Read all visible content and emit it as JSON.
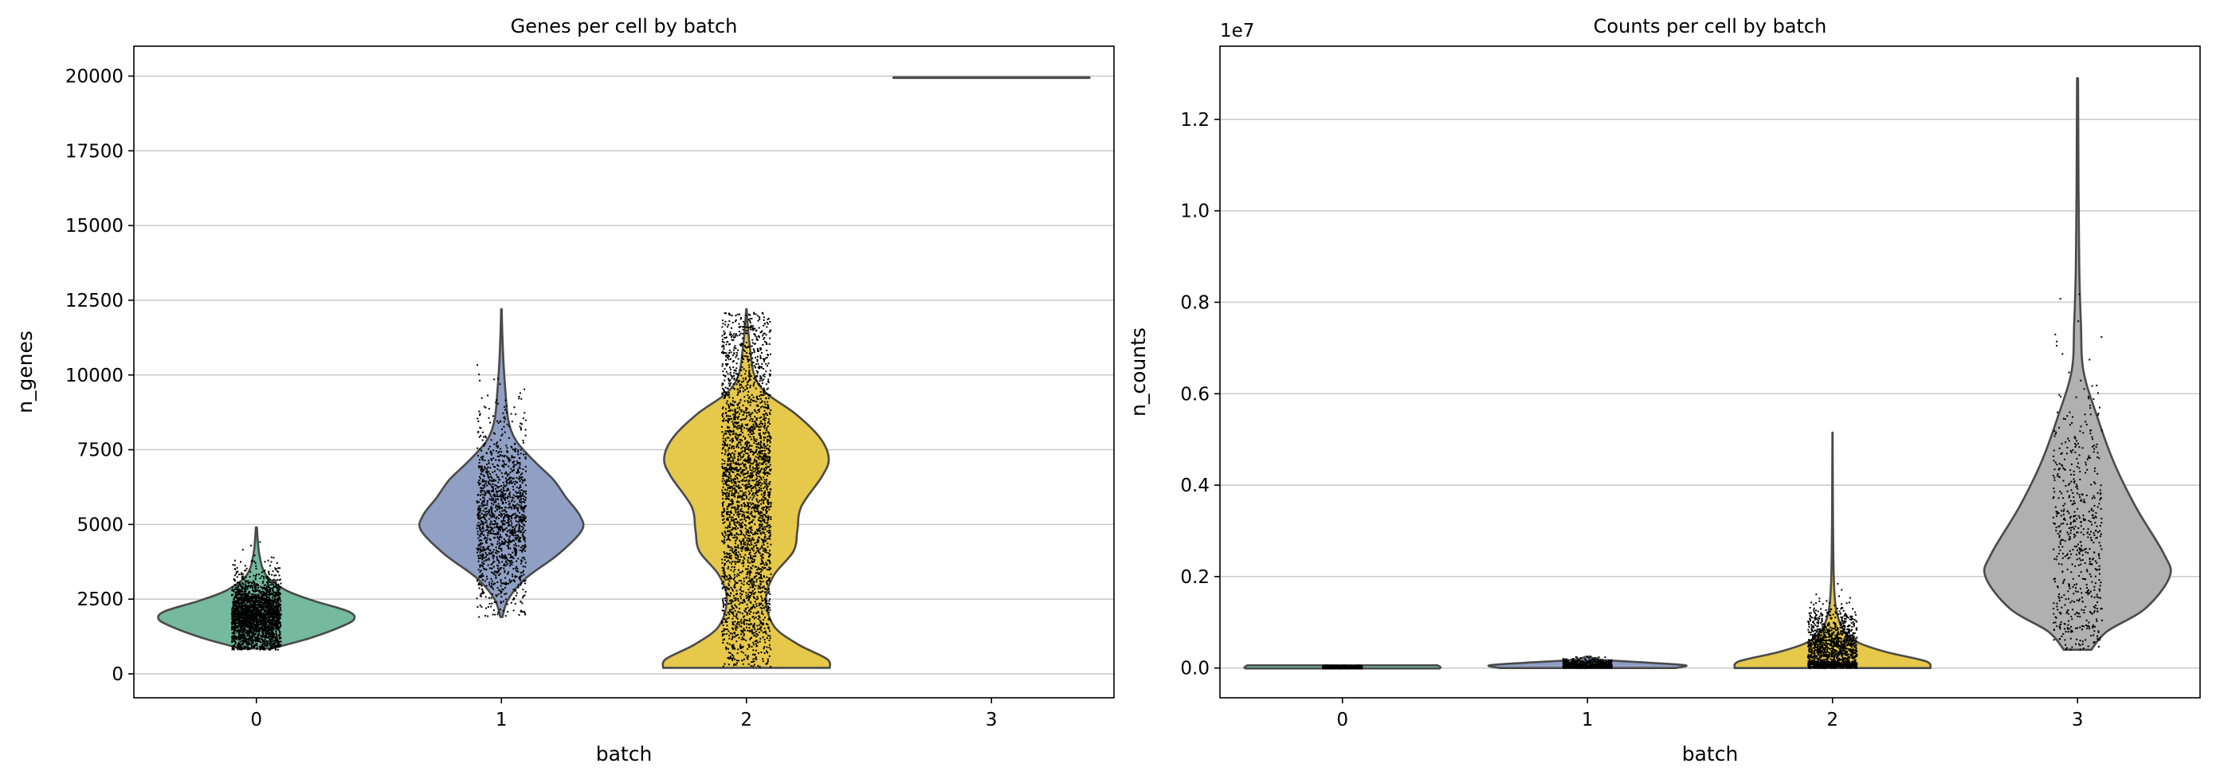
{
  "chart_data": [
    {
      "type": "violin",
      "title": "Genes per cell by batch",
      "xlabel": "batch",
      "ylabel": "n_genes",
      "categories": [
        "0",
        "1",
        "2",
        "3"
      ],
      "ylim": [
        -800,
        21000
      ],
      "yticks": [
        0,
        2500,
        5000,
        7500,
        10000,
        12500,
        15000,
        17500,
        20000
      ],
      "ytick_labels": [
        "0",
        "2500",
        "5000",
        "7500",
        "10000",
        "12500",
        "15000",
        "17500",
        "20000"
      ],
      "grid": "y",
      "violins": [
        {
          "category": "0",
          "color": "#74b9a0",
          "min": 850,
          "max": 4900,
          "max_halfwidth": 0.4,
          "profile": [
            [
              850,
              0.16
            ],
            [
              1200,
              0.55
            ],
            [
              1600,
              0.88
            ],
            [
              1850,
              1.0
            ],
            [
              2100,
              0.93
            ],
            [
              2450,
              0.58
            ],
            [
              2800,
              0.3
            ],
            [
              3300,
              0.1
            ],
            [
              4000,
              0.03
            ],
            [
              4900,
              0.005
            ]
          ]
        },
        {
          "category": "1",
          "color": "#909fc4",
          "min": 1900,
          "max": 12200,
          "max_halfwidth": 0.4,
          "profile": [
            [
              1900,
              0.01
            ],
            [
              2500,
              0.07
            ],
            [
              3200,
              0.25
            ],
            [
              4000,
              0.58
            ],
            [
              4800,
              0.82
            ],
            [
              5300,
              0.8
            ],
            [
              5900,
              0.66
            ],
            [
              6500,
              0.53
            ],
            [
              7100,
              0.34
            ],
            [
              7800,
              0.15
            ],
            [
              8500,
              0.07
            ],
            [
              9500,
              0.04
            ],
            [
              10500,
              0.02
            ],
            [
              11500,
              0.008
            ],
            [
              12200,
              0.003
            ]
          ]
        },
        {
          "category": "2",
          "color": "#e6c84a",
          "min": 200,
          "max": 12200,
          "max_halfwidth": 0.4,
          "profile": [
            [
              200,
              0.85
            ],
            [
              500,
              0.82
            ],
            [
              1000,
              0.52
            ],
            [
              1600,
              0.28
            ],
            [
              2500,
              0.2
            ],
            [
              3300,
              0.28
            ],
            [
              4100,
              0.48
            ],
            [
              4800,
              0.52
            ],
            [
              5600,
              0.56
            ],
            [
              6600,
              0.77
            ],
            [
              7200,
              0.84
            ],
            [
              7900,
              0.75
            ],
            [
              8700,
              0.5
            ],
            [
              9400,
              0.2
            ],
            [
              10000,
              0.08
            ],
            [
              10800,
              0.04
            ],
            [
              11600,
              0.015
            ],
            [
              12200,
              0.003
            ]
          ]
        },
        {
          "category": "3",
          "color": "#b0b0b0",
          "min": 19940,
          "max": 19960,
          "max_halfwidth": 0.4,
          "profile": [
            [
              19940,
              1.0
            ],
            [
              19960,
              1.0
            ]
          ]
        }
      ],
      "jitter": [
        {
          "category": "0",
          "count": 2600,
          "min": 800,
          "max": 4900,
          "center": 1950,
          "spread": 650,
          "width": 0.1
        },
        {
          "category": "1",
          "count": 1400,
          "min": 1900,
          "max": 12100,
          "center": 5200,
          "spread": 1600,
          "width": 0.1
        },
        {
          "category": "2",
          "count": 2800,
          "min": 200,
          "max": 12100,
          "center": 6000,
          "spread": 3300,
          "width": 0.1
        }
      ]
    },
    {
      "type": "violin",
      "title": "Counts per cell by batch",
      "xlabel": "batch",
      "ylabel": "n_counts",
      "offset_label": "1e7",
      "categories": [
        "0",
        "1",
        "2",
        "3"
      ],
      "ylim": [
        -0.065,
        1.36
      ],
      "yticks": [
        0.0,
        0.2,
        0.4,
        0.6,
        0.8,
        1.0,
        1.2
      ],
      "ytick_labels": [
        "0.0",
        "0.2",
        "0.4",
        "0.6",
        "0.8",
        "1.0",
        "1.2"
      ],
      "grid": "y",
      "violins": [
        {
          "category": "0",
          "color": "#74b9a0",
          "min": -0.001,
          "max": 0.006,
          "max_halfwidth": 0.4,
          "profile": [
            [
              -0.001,
              0.99
            ],
            [
              0.002,
              1.0
            ],
            [
              0.006,
              0.97
            ]
          ]
        },
        {
          "category": "1",
          "color": "#909fc4",
          "min": 0.0,
          "max": 0.025,
          "max_halfwidth": 0.4,
          "profile": [
            [
              0.0,
              0.9
            ],
            [
              0.006,
              1.0
            ],
            [
              0.012,
              0.6
            ],
            [
              0.018,
              0.15
            ],
            [
              0.025,
              0.01
            ]
          ]
        },
        {
          "category": "2",
          "color": "#e6c84a",
          "min": 0.0,
          "max": 0.515,
          "max_halfwidth": 0.4,
          "profile": [
            [
              0.0,
              1.0
            ],
            [
              0.015,
              0.95
            ],
            [
              0.035,
              0.55
            ],
            [
              0.055,
              0.27
            ],
            [
              0.08,
              0.12
            ],
            [
              0.12,
              0.045
            ],
            [
              0.17,
              0.018
            ],
            [
              0.25,
              0.008
            ],
            [
              0.35,
              0.004
            ],
            [
              0.45,
              0.002
            ],
            [
              0.515,
              0.001
            ]
          ]
        },
        {
          "category": "3",
          "color": "#b0b0b0",
          "min": 0.04,
          "max": 1.29,
          "max_halfwidth": 0.4,
          "profile": [
            [
              0.04,
              0.14
            ],
            [
              0.08,
              0.3
            ],
            [
              0.13,
              0.69
            ],
            [
              0.2,
              0.94
            ],
            [
              0.25,
              0.88
            ],
            [
              0.35,
              0.6
            ],
            [
              0.45,
              0.37
            ],
            [
              0.55,
              0.2
            ],
            [
              0.65,
              0.06
            ],
            [
              0.75,
              0.035
            ],
            [
              0.85,
              0.02
            ],
            [
              0.95,
              0.014
            ],
            [
              1.05,
              0.01
            ],
            [
              1.15,
              0.008
            ],
            [
              1.29,
              0.005
            ]
          ]
        }
      ],
      "jitter": [
        {
          "category": "0",
          "count": 1200,
          "min": -0.001,
          "max": 0.006,
          "center": 0.001,
          "spread": 0.002,
          "width": 0.08
        },
        {
          "category": "1",
          "count": 700,
          "min": 0.0,
          "max": 0.026,
          "center": 0.006,
          "spread": 0.006,
          "width": 0.1
        },
        {
          "category": "2",
          "count": 1500,
          "min": 0.0,
          "max": 0.515,
          "center": 0.035,
          "spread": 0.045,
          "width": 0.1
        },
        {
          "category": "3",
          "count": 600,
          "min": 0.04,
          "max": 1.24,
          "center": 0.28,
          "spread": 0.17,
          "width": 0.1
        }
      ]
    }
  ]
}
